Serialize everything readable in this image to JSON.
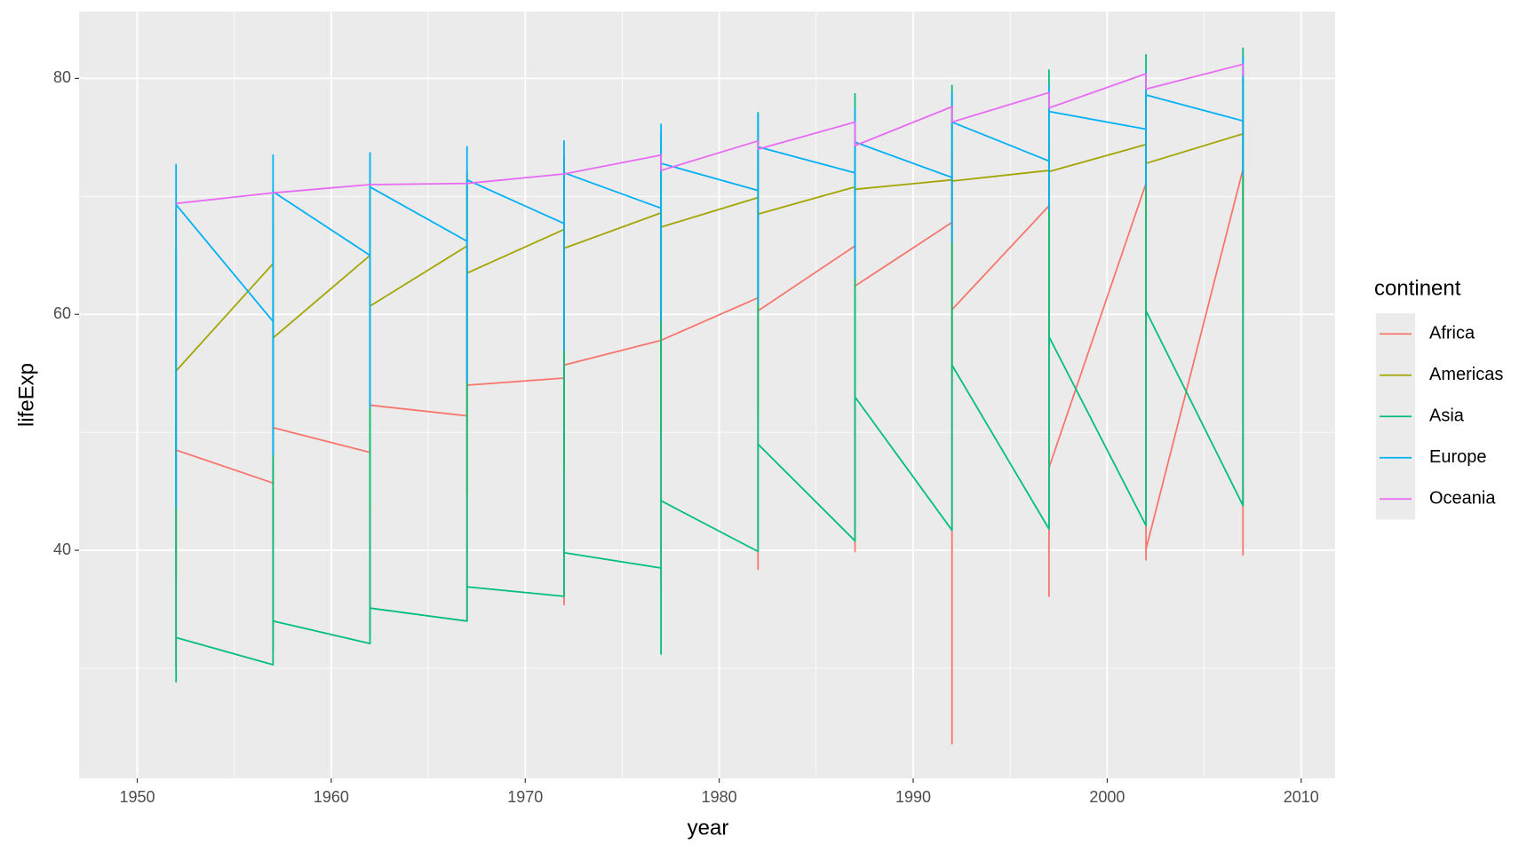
{
  "chart_data": {
    "type": "line",
    "x_label": "year",
    "y_label": "lifeExp",
    "legend_title": "continent",
    "legend": "right",
    "grid": true,
    "xlim": [
      1947.0,
      2011.75
    ],
    "ylim": [
      20.67,
      85.67
    ],
    "xticks": [
      1950,
      1960,
      1970,
      1980,
      1990,
      2000,
      2010
    ],
    "yticks": [
      40,
      60,
      80
    ],
    "series": [
      {
        "name": "Africa",
        "color": "#F8766D",
        "x": [
          1952,
          1952,
          1952,
          1957,
          1957,
          1957,
          1957,
          1962,
          1962,
          1962,
          1962,
          1967,
          1967,
          1967,
          1967,
          1972,
          1972,
          1972,
          1972,
          1977,
          1977,
          1977,
          1977,
          1982,
          1982,
          1982,
          1982,
          1987,
          1987,
          1987,
          1987,
          1992,
          1992,
          1992,
          1992,
          1997,
          1997,
          1997,
          1997,
          2002,
          2002,
          2002,
          2002,
          2007,
          2007,
          2007
        ],
        "values": [
          30,
          52.7,
          48.5,
          45.7,
          31.6,
          58,
          50.4,
          48.3,
          32.8,
          60.2,
          52.3,
          51.4,
          34.1,
          64,
          54,
          54.6,
          35.4,
          67,
          55.7,
          57.8,
          36.8,
          69,
          57.8,
          61.4,
          38.4,
          73,
          60.3,
          65.8,
          39.9,
          71.9,
          62.4,
          67.8,
          23.6,
          73.6,
          60.4,
          69.2,
          36.1,
          74.8,
          47,
          71.1,
          39.2,
          75.7,
          40.1,
          72.3,
          39.6,
          76.4
        ]
      },
      {
        "name": "Americas",
        "color": "#A3A500",
        "x": [
          1952,
          1952,
          1952,
          1957,
          1957,
          1957,
          1957,
          1962,
          1962,
          1962,
          1962,
          1967,
          1967,
          1967,
          1967,
          1972,
          1972,
          1972,
          1972,
          1977,
          1977,
          1977,
          1977,
          1982,
          1982,
          1982,
          1982,
          1987,
          1987,
          1987,
          1987,
          1992,
          1992,
          1992,
          1992,
          1997,
          1997,
          1997,
          1997,
          2002,
          2002,
          2002,
          2002,
          2007,
          2007,
          2007
        ],
        "values": [
          37.6,
          68.8,
          55.2,
          64.3,
          40.7,
          70,
          58,
          65,
          43.4,
          71.3,
          60.7,
          65.8,
          45,
          72.1,
          63.5,
          67.2,
          46.7,
          72.9,
          65.6,
          68.6,
          49.9,
          74.2,
          67.4,
          69.9,
          51.5,
          75.8,
          68.5,
          70.8,
          53.6,
          76.9,
          70.6,
          71.4,
          55.1,
          77.9,
          71.3,
          72.2,
          56.7,
          78.6,
          72.1,
          74.4,
          58.1,
          79.8,
          72.8,
          75.3,
          60.9,
          80.7
        ]
      },
      {
        "name": "Asia",
        "color": "#00BF7D",
        "x": [
          1952,
          1952,
          1952,
          1957,
          1957,
          1957,
          1962,
          1962,
          1962,
          1967,
          1967,
          1967,
          1972,
          1972,
          1972,
          1977,
          1977,
          1977,
          1977,
          1982,
          1982,
          1982,
          1987,
          1987,
          1987,
          1992,
          1992,
          1992,
          1997,
          1997,
          1997,
          2002,
          2002,
          2002,
          2007,
          2007
        ],
        "values": [
          28.8,
          65.4,
          32.6,
          30.3,
          67.8,
          34,
          32.1,
          69.4,
          35.1,
          34,
          71.4,
          36.9,
          36.1,
          73.4,
          39.8,
          38.5,
          31.2,
          75.4,
          44.2,
          39.9,
          77.1,
          49,
          40.8,
          78.7,
          53,
          41.7,
          79.4,
          55.7,
          41.8,
          80.7,
          58.1,
          42.1,
          82,
          60.3,
          43.8,
          82.6
        ]
      },
      {
        "name": "Europe",
        "color": "#00B0F6",
        "x": [
          1952,
          1952,
          1952,
          1957,
          1957,
          1957,
          1957,
          1962,
          1962,
          1962,
          1962,
          1967,
          1967,
          1967,
          1967,
          1972,
          1972,
          1972,
          1972,
          1977,
          1977,
          1977,
          1977,
          1982,
          1982,
          1982,
          1982,
          1987,
          1987,
          1987,
          1987,
          1992,
          1992,
          1992,
          1992,
          1997,
          1997,
          1997,
          1997,
          2002,
          2002,
          2002,
          2002,
          2007,
          2007,
          2007
        ],
        "values": [
          43.6,
          72.7,
          69.3,
          59.4,
          48.1,
          73.5,
          70.4,
          65,
          52.1,
          73.7,
          70.8,
          66.2,
          54.3,
          74.2,
          71.4,
          67.7,
          57,
          74.7,
          72,
          69,
          59.5,
          76.1,
          72.8,
          70.5,
          61,
          77,
          74.2,
          72,
          63.1,
          77.4,
          74.6,
          71.6,
          66.1,
          78.8,
          76.3,
          73,
          68.8,
          79.4,
          77.2,
          75.7,
          70.8,
          80.6,
          78.6,
          76.4,
          71.8,
          81.8
        ]
      },
      {
        "name": "Oceania",
        "color": "#E76BF3",
        "x": [
          1952,
          1957,
          1962,
          1967,
          1972,
          1977,
          1977,
          1982,
          1982,
          1987,
          1987,
          1992,
          1992,
          1997,
          1997,
          2002,
          2002,
          2007,
          2007
        ],
        "values": [
          69.4,
          70.3,
          71,
          71.1,
          71.9,
          73.5,
          72.2,
          74.7,
          74,
          76.3,
          74.3,
          77.6,
          76.3,
          78.8,
          77.5,
          80.4,
          79.1,
          81.2,
          80.2
        ]
      }
    ]
  }
}
